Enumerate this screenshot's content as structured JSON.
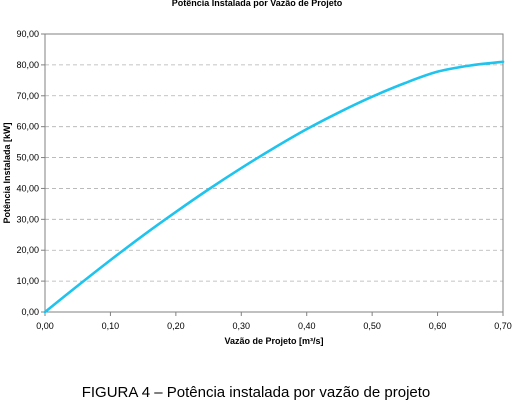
{
  "chart_data": {
    "type": "line",
    "title": "Potência Instalada por Vazão de Projeto",
    "xlabel": "Vazão de Projeto [m³/s]",
    "ylabel": "Potência Instalada [kW]",
    "xlim": [
      0,
      0.7
    ],
    "ylim": [
      0,
      90
    ],
    "x_ticks": [
      "0,00",
      "0,10",
      "0,20",
      "0,30",
      "0,40",
      "0,50",
      "0,60",
      "0,70"
    ],
    "y_ticks": [
      "0,00",
      "10,00",
      "20,00",
      "30,00",
      "40,00",
      "50,00",
      "60,00",
      "70,00",
      "80,00",
      "90,00"
    ],
    "grid": "horizontal dashed",
    "series": [
      {
        "color": "#1EC3EE",
        "x": [
          0.0,
          0.05,
          0.1,
          0.15,
          0.2,
          0.25,
          0.3,
          0.35,
          0.4,
          0.45,
          0.5,
          0.55,
          0.6,
          0.65,
          0.7
        ],
        "y": [
          0.0,
          8.5,
          16.8,
          24.8,
          32.4,
          39.7,
          46.6,
          53.1,
          59.2,
          64.7,
          69.7,
          74.1,
          77.8,
          79.8,
          81.0
        ]
      }
    ]
  },
  "caption": "FIGURA 4 – Potência instalada por vazão de projeto"
}
